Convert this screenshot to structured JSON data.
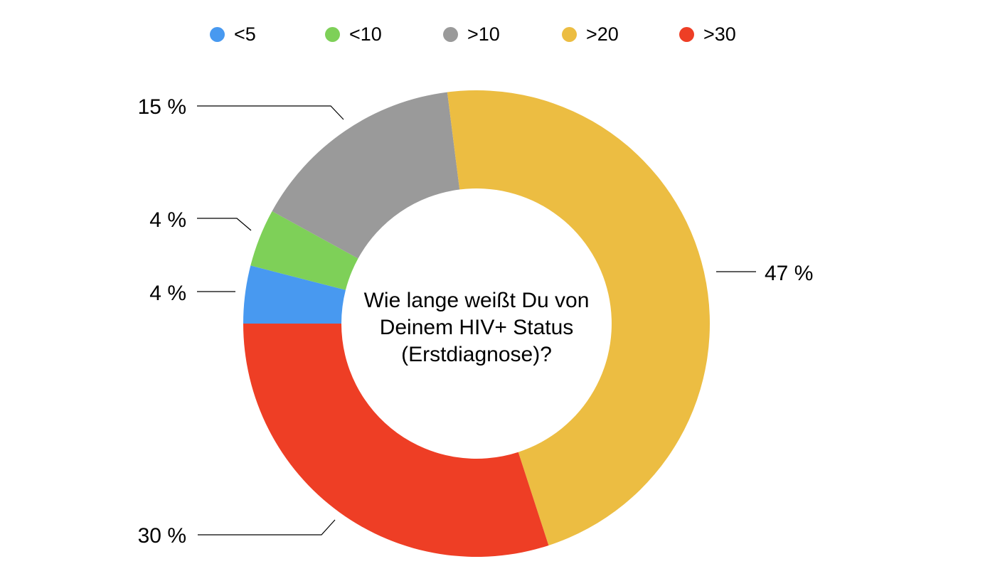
{
  "chart_data": {
    "type": "pie",
    "variant": "donut",
    "center_text": "Wie lange weißt Du von Deinem HIV+ Status (Erstdiagnose)?",
    "center_text_lines": [
      "Wie lange weißt Du von",
      "Deinem HIV+ Status",
      "(Erstdiagnose)?"
    ],
    "legend_position": "top",
    "start_angle_deg": 270,
    "direction": "clockwise",
    "background_color": "#FFFFFF",
    "text_color": "#000000",
    "callout_line_color": "#000000",
    "slices": [
      {
        "id": "lt5",
        "label": "<5",
        "value": 4,
        "pct_label": "4 %",
        "color": "#4899F0"
      },
      {
        "id": "lt10",
        "label": "<10",
        "value": 4,
        "pct_label": "4 %",
        "color": "#7ED058"
      },
      {
        "id": "gt10",
        "label": ">10",
        "value": 15,
        "pct_label": "15 %",
        "color": "#9A9A9A"
      },
      {
        "id": "gt20",
        "label": ">20",
        "value": 47,
        "pct_label": "47 %",
        "color": "#ECBD42"
      },
      {
        "id": "gt30",
        "label": ">30",
        "value": 30,
        "pct_label": "30 %",
        "color": "#EE3E25"
      }
    ]
  }
}
